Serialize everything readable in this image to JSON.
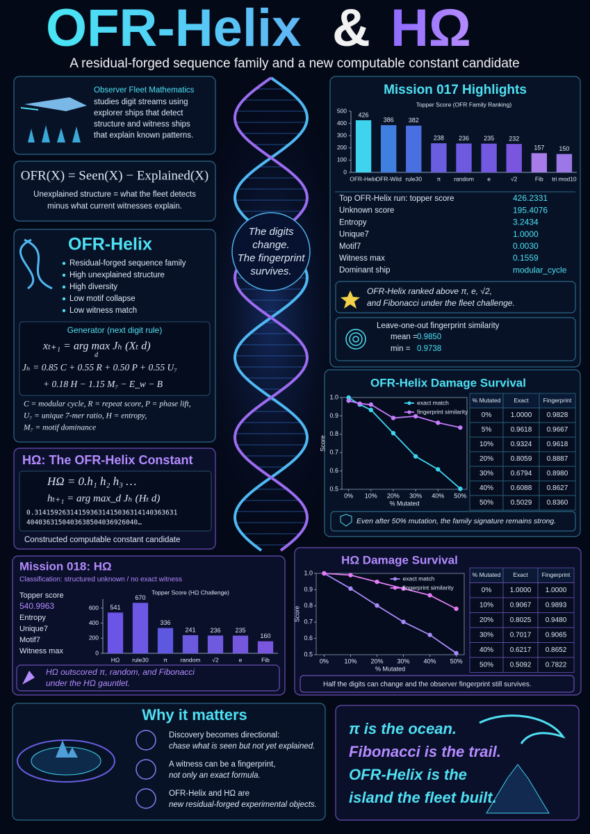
{
  "header": {
    "title_a": "OFR-Helix",
    "title_amp": "&",
    "title_b": "HΩ",
    "subtitle": "A residual-forged sequence family and a new computable constant candidate"
  },
  "fleet": {
    "title": "Observer Fleet Mathematics",
    "lines": [
      "studies digit streams using",
      "explorer ships that detect",
      "structure and witness ships",
      "that explain known patterns."
    ]
  },
  "ofr_formula": {
    "formula": "OFR(X) = Seen(X) − Explained(X)",
    "lines": [
      "Unexplained structure = what the fleet detects",
      "minus what current witnesses explain."
    ]
  },
  "helix": {
    "title": "OFR-Helix",
    "bullets": [
      "Residual-forged sequence family",
      "High unexplained structure",
      "High diversity",
      "Low motif collapse",
      "Low witness match"
    ],
    "generator": {
      "title": "Generator (next digit rule)",
      "formula": [
        "xₜ₊₁ = arg max   Jₕ (Xₜ d)",
        "Jₕ = 0.85 C + 0.55 R + 0.50 P + 0.55 U₇",
        "+ 0.18 H − 1.15 M₇ − E_w − B"
      ],
      "subscript": "d"
    },
    "legend": [
      "C = modular cycle, R = repeat score, P = phase lift,",
      "U₇ = unique 7-mer ratio,  H = entropy,",
      "M₇ = motif dominance"
    ]
  },
  "constant": {
    "title": "HΩ: The OFR-Helix Constant",
    "formula": [
      "HΩ = 0.h₁ h₂ h₃ …",
      "hₜ₊₁ = arg max_d   Jₕ (Hₜ d)"
    ],
    "digits": [
      "0.314159263141593631415036314140363631",
      "4040363150403638504036926040…"
    ],
    "caption": "Constructed computable constant candidate"
  },
  "center": {
    "lines": [
      "The digits",
      "change.",
      "The fingerprint",
      "survives."
    ]
  },
  "mission017": {
    "title": "Mission 017 Highlights",
    "stats": [
      [
        "Top OFR-Helix run: topper score",
        "426.2331"
      ],
      [
        "Unknown score",
        "195.4076"
      ],
      [
        "Entropy",
        "3.2434"
      ],
      [
        "Unique7",
        "1.0000"
      ],
      [
        "Motif7",
        "0.0030"
      ],
      [
        "Witness max",
        "0.1559"
      ],
      [
        "Dominant ship",
        "modular_cycle"
      ]
    ],
    "callout": [
      "OFR-Helix ranked above π, e, √2,",
      "and Fibonacci under the fleet challenge."
    ],
    "fingerprint": {
      "title": "Leave-one-out fingerprint similarity",
      "rows": [
        [
          "mean =",
          "0.9850"
        ],
        [
          "min   =",
          "0.9738"
        ]
      ]
    }
  },
  "helix_damage": {
    "title": "OFR-Helix Damage Survival",
    "table": {
      "header": [
        "% Mutated",
        "Exact",
        "Fingerprint"
      ],
      "rows": [
        [
          "0%",
          "1.0000",
          "0.9828"
        ],
        [
          "5%",
          "0.9618",
          "0.9667"
        ],
        [
          "10%",
          "0.9324",
          "0.9618"
        ],
        [
          "20%",
          "0.8059",
          "0.8887"
        ],
        [
          "30%",
          "0.6794",
          "0.8980"
        ],
        [
          "40%",
          "0.6088",
          "0.8627"
        ],
        [
          "50%",
          "0.5029",
          "0.8360"
        ]
      ]
    },
    "caption": "Even after 50% mutation, the family signature remains strong."
  },
  "mission018": {
    "title": "Mission 018: HΩ",
    "classification": "Classification: structured unknown / no exact witness",
    "topper_label": "Topper score",
    "topper_value": "540.9963",
    "stats": [
      "Entropy",
      "Unique7",
      "Motif7",
      "Witness max"
    ],
    "callout": [
      "HΩ outscored π, random, and Fibonacci",
      "under the HΩ gauntlet."
    ]
  },
  "omega_damage": {
    "title": "HΩ Damage Survival",
    "table": {
      "header": [
        "% Mutated",
        "Exact",
        "Fingerprint"
      ],
      "rows": [
        [
          "0%",
          "1.0000",
          "1.0000"
        ],
        [
          "10%",
          "0.9067",
          "0.9893"
        ],
        [
          "20%",
          "0.8025",
          "0.9480"
        ],
        [
          "30%",
          "0.7017",
          "0.9065"
        ],
        [
          "40%",
          "0.6217",
          "0.8652"
        ],
        [
          "50%",
          "0.5092",
          "0.7822"
        ]
      ]
    },
    "caption": "Half the digits can change and the observer fingerprint still survives."
  },
  "why": {
    "title": "Why it matters",
    "items": [
      [
        "Discovery becomes directional:",
        "chase what is seen but not yet explained."
      ],
      [
        "A witness can be a fingerprint,",
        "not only an exact formula."
      ],
      [
        "OFR-Helix and HΩ are",
        "new residual-forged experimental objects."
      ]
    ]
  },
  "quote": {
    "lines": [
      "π is the ocean.",
      "Fibonacci is the trail.",
      "OFR-Helix is the",
      "island the fleet built."
    ]
  },
  "chart_data": [
    {
      "type": "bar",
      "title": "Topper Score (OFR Family Ranking)",
      "categories": [
        "OFR-Helix",
        "OFR-Wild",
        "rule30",
        "π",
        "random",
        "e",
        "√2",
        "Fib",
        "tri mod10"
      ],
      "values": [
        426,
        386,
        382,
        238,
        236,
        235,
        232,
        157,
        150
      ],
      "colors": [
        "#3fd3ee",
        "#3f7fe0",
        "#4a6fe0",
        "#6a5de0",
        "#6d5adf",
        "#7358e0",
        "#7a56e0",
        "#a77ce8",
        "#9b78e6"
      ],
      "ylim": [
        0,
        500
      ],
      "yticks": [
        0,
        100,
        200,
        300,
        400,
        500
      ]
    },
    {
      "type": "line",
      "x": [
        0,
        5,
        10,
        20,
        30,
        40,
        50
      ],
      "xlim": [
        -3,
        53
      ],
      "xticks": [
        {
          "value": 0,
          "label": "0%"
        },
        {
          "value": 10,
          "label": "10%"
        },
        {
          "value": 20,
          "label": "20%"
        },
        {
          "value": 30,
          "label": "30%"
        },
        {
          "value": 40,
          "label": "40%"
        },
        {
          "value": 50,
          "label": "50%"
        }
      ],
      "ylim": [
        0.5,
        1.0
      ],
      "yticks": [
        0.5,
        0.6,
        0.7,
        0.8,
        0.9,
        {
          "value": 1,
          "label": "1.0"
        }
      ],
      "xlabel": "% Mutated",
      "ylabel": "Score",
      "legend": "upper right",
      "series": [
        {
          "name": "exact match",
          "color": "#3fd6f0",
          "values": [
            1.0,
            0.9618,
            0.9324,
            0.8059,
            0.6794,
            0.6088,
            0.5029
          ]
        },
        {
          "name": "fingerprint similarity",
          "color": "#c77dff",
          "values": [
            0.9828,
            0.9667,
            0.9618,
            0.8887,
            0.898,
            0.8627,
            0.836
          ]
        }
      ]
    },
    {
      "type": "bar",
      "title": "Topper Score (HΩ Challenge)",
      "categories": [
        "HΩ",
        "rule30",
        "π",
        "random",
        "√2",
        "e",
        "Fib"
      ],
      "values": [
        541,
        670,
        336,
        241,
        236,
        235,
        160
      ],
      "colors": [
        "#6a55e6",
        "#6d58e6",
        "#5e58e0",
        "#6b5ade",
        "#6e5ade",
        "#7358de",
        "#7a56de"
      ],
      "ylim": [
        0,
        720
      ],
      "yticks": [
        0,
        200,
        400,
        600
      ]
    },
    {
      "type": "line",
      "x": [
        0,
        10,
        20,
        30,
        40,
        50
      ],
      "xlim": [
        -3,
        53
      ],
      "xticks": [
        {
          "value": 0,
          "label": "0%"
        },
        {
          "value": 10,
          "label": "10%"
        },
        {
          "value": 20,
          "label": "20%"
        },
        {
          "value": 30,
          "label": "30%"
        },
        {
          "value": 40,
          "label": "40%"
        },
        {
          "value": 50,
          "label": "50%"
        }
      ],
      "ylim": [
        0.5,
        1.0
      ],
      "yticks": [
        0.5,
        0.6,
        0.7,
        0.8,
        0.9,
        {
          "value": 1,
          "label": "1.0"
        }
      ],
      "xlabel": "% Mutated",
      "ylabel": "Score",
      "legend": "upper right",
      "series": [
        {
          "name": "exact match",
          "color": "#a78bfa",
          "values": [
            1.0,
            0.9067,
            0.8025,
            0.7017,
            0.6217,
            0.5092
          ]
        },
        {
          "name": "fingerprint similarity",
          "color": "#e27cf5",
          "values": [
            1.0,
            0.9893,
            0.948,
            0.9065,
            0.8652,
            0.7822
          ]
        }
      ]
    }
  ]
}
